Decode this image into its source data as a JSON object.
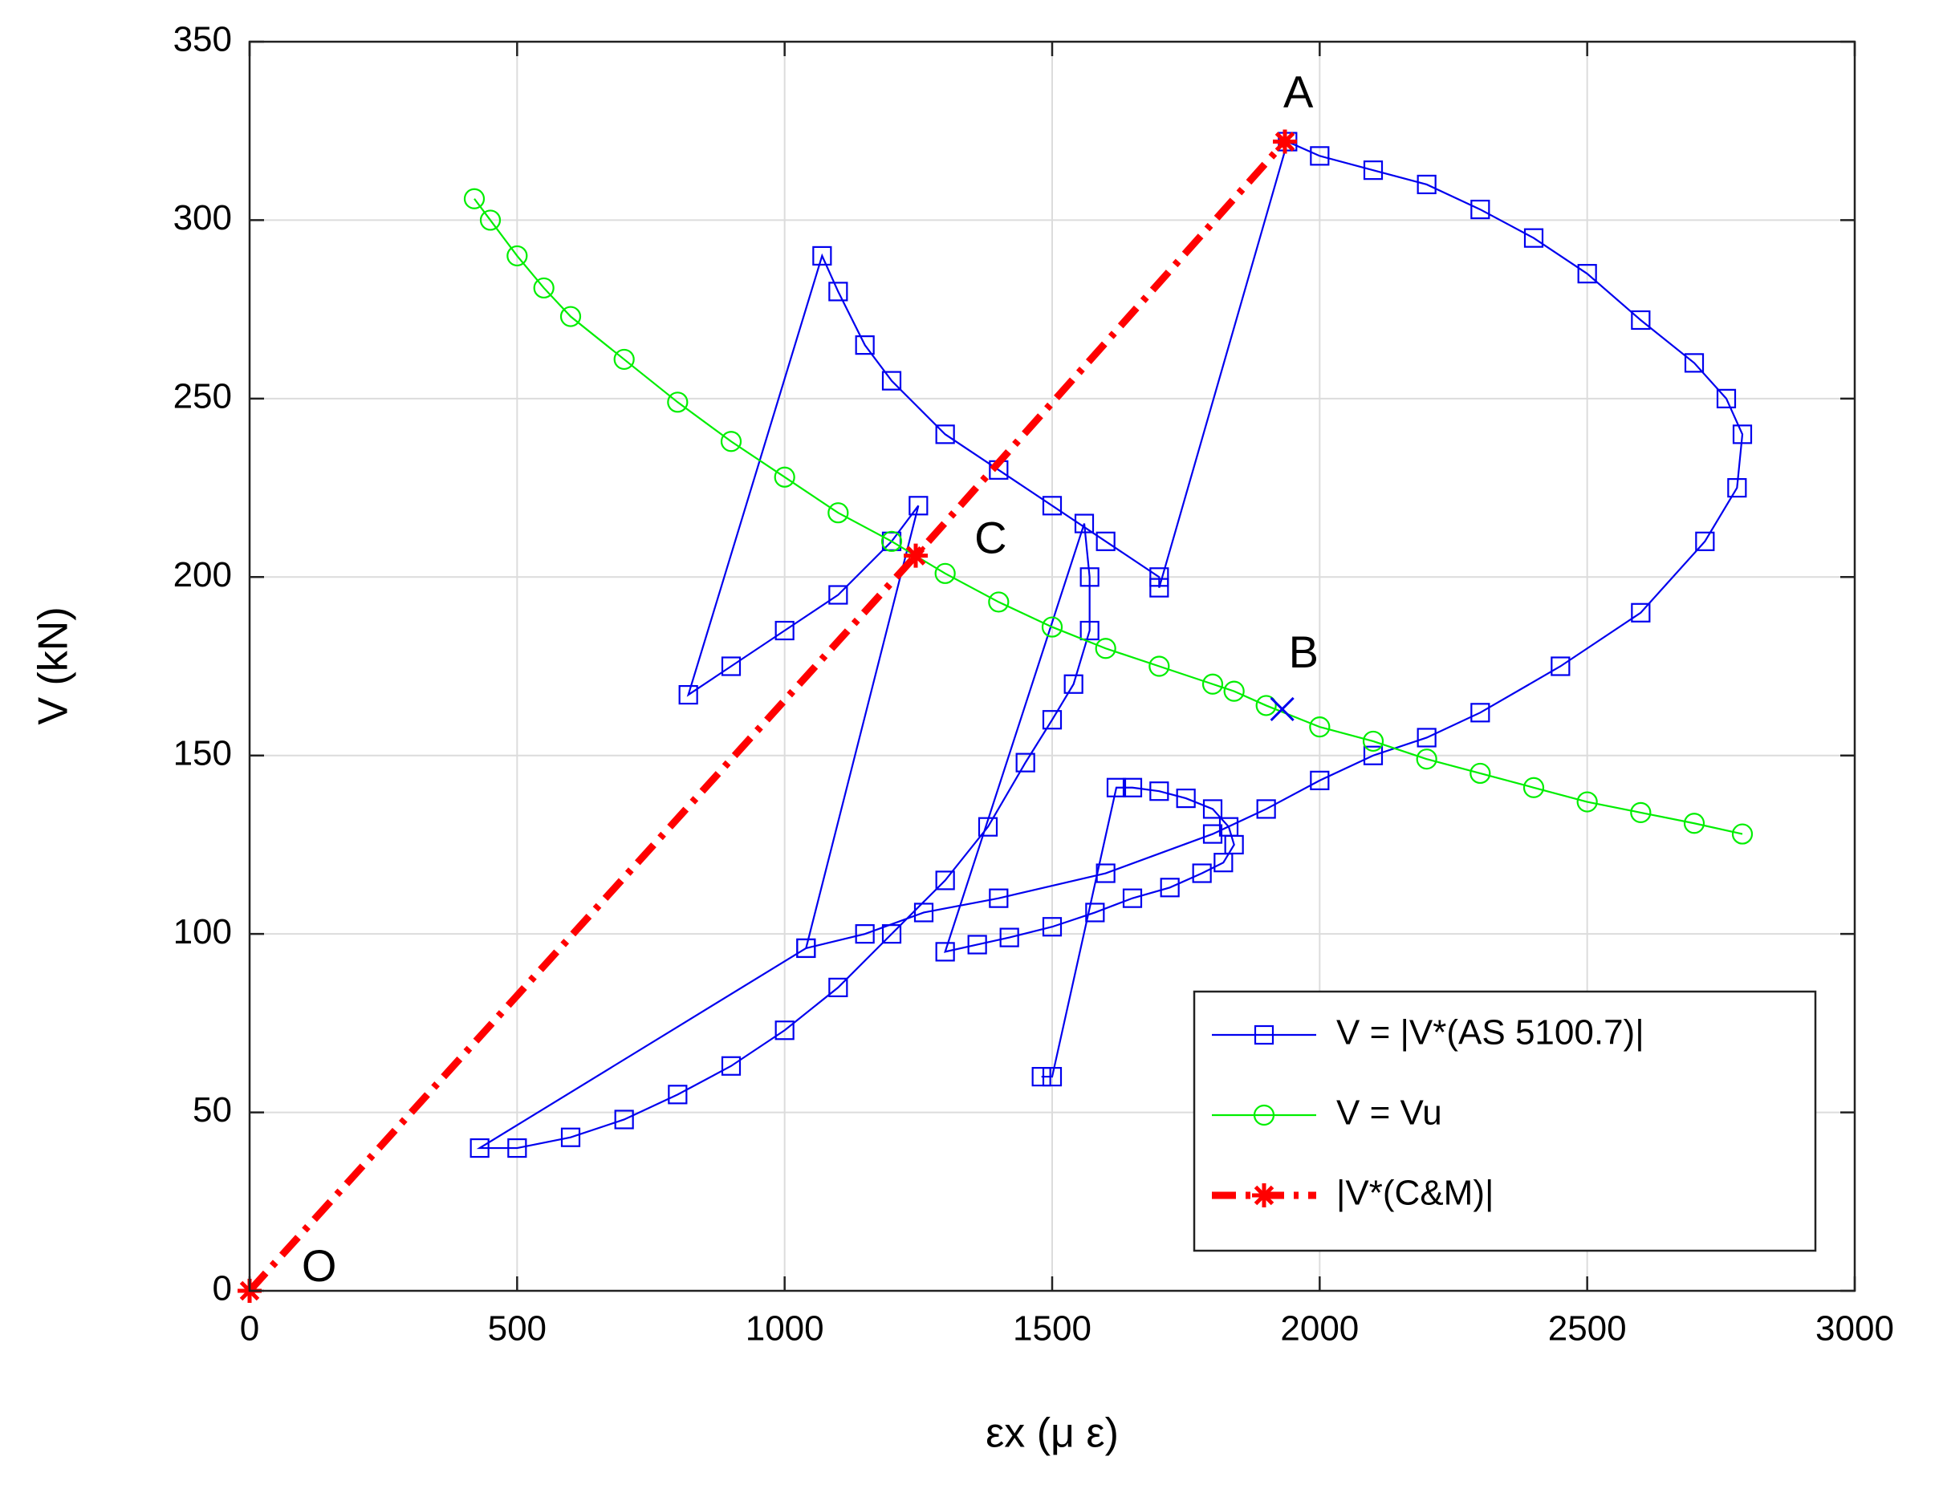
{
  "chart_data": {
    "type": "line",
    "xlabel": "εx (μ ε)",
    "ylabel": "V (kN)",
    "xlim": [
      0,
      3000
    ],
    "ylim": [
      0,
      350
    ],
    "xticks": [
      0,
      500,
      1000,
      1500,
      2000,
      2500,
      3000
    ],
    "yticks": [
      0,
      50,
      100,
      150,
      200,
      250,
      300,
      350
    ],
    "grid": true,
    "legend": "lower right",
    "annotations": [
      "A",
      "B",
      "C",
      "O"
    ],
    "series": [
      {
        "name": "V = |V*(AS 5100.7)|",
        "color": "#0000ee",
        "marker": "square",
        "x": [
          1480,
          1500,
          1620,
          1650,
          1700,
          1750,
          1800,
          1830,
          1840,
          1820,
          1780,
          1720,
          1650,
          1580,
          1500,
          1420,
          1360,
          1300,
          1560,
          1570,
          1570,
          1540,
          1500,
          1450,
          1380,
          1300,
          1200,
          1100,
          1000,
          900,
          800,
          700,
          600,
          500,
          430,
          1040,
          1250,
          1200,
          1100,
          1000,
          900,
          820,
          1070,
          1100,
          1150,
          1200,
          1300,
          1400,
          1500,
          1600,
          1700,
          1700,
          1940,
          2000,
          2100,
          2200,
          2300,
          2400,
          2500,
          2600,
          2700,
          2760,
          2790,
          2780,
          2720,
          2600,
          2450,
          2300,
          2200,
          2100,
          2000,
          1900,
          1800,
          1600,
          1400,
          1260,
          1150,
          1040
        ],
        "y": [
          60,
          60,
          141,
          141,
          140,
          138,
          135,
          130,
          125,
          120,
          117,
          113,
          110,
          106,
          102,
          99,
          97,
          95,
          215,
          200,
          185,
          170,
          160,
          148,
          130,
          115,
          100,
          85,
          73,
          63,
          55,
          48,
          43,
          40,
          40,
          96,
          220,
          210,
          195,
          185,
          175,
          167,
          290,
          280,
          265,
          255,
          240,
          230,
          220,
          210,
          200,
          197,
          322,
          318,
          314,
          310,
          303,
          295,
          285,
          272,
          260,
          250,
          240,
          225,
          210,
          190,
          175,
          162,
          155,
          150,
          143,
          135,
          128,
          117,
          110,
          106,
          100,
          96
        ]
      },
      {
        "name": "V = Vu",
        "color": "#00ee00",
        "marker": "circle",
        "x": [
          420,
          450,
          500,
          550,
          600,
          700,
          800,
          900,
          1000,
          1100,
          1200,
          1300,
          1400,
          1500,
          1600,
          1700,
          1800,
          1840,
          1900,
          2000,
          2100,
          2200,
          2300,
          2400,
          2500,
          2600,
          2700,
          2790
        ],
        "y": [
          306,
          300,
          290,
          281,
          273,
          261,
          249,
          238,
          228,
          218,
          210,
          201,
          193,
          186,
          180,
          175,
          170,
          168,
          164,
          158,
          154,
          149,
          145,
          141,
          137,
          134,
          131,
          128
        ]
      },
      {
        "name": "|V*(C&M)|",
        "color": "#ff0000",
        "marker": "asterisk",
        "x": [
          0,
          1245,
          1935
        ],
        "y": [
          0,
          206,
          322
        ]
      }
    ]
  }
}
